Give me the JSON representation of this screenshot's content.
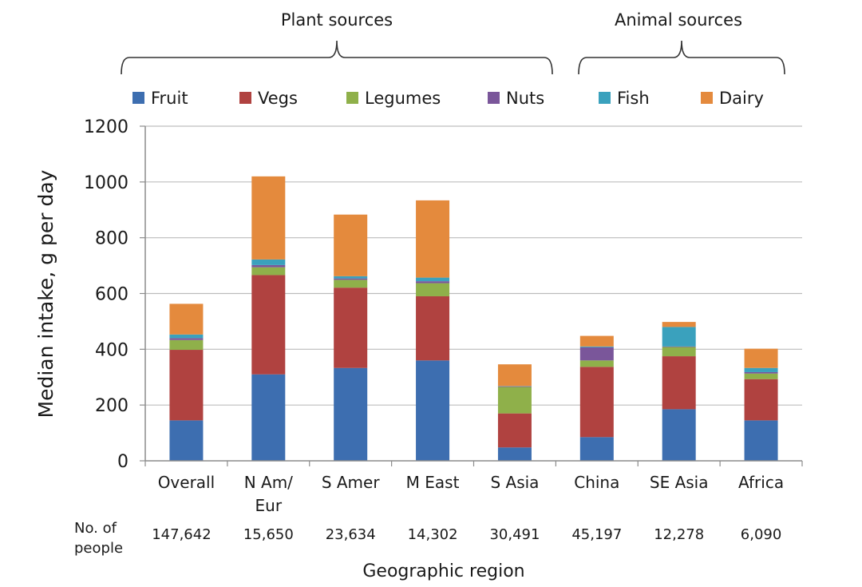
{
  "chart_data": {
    "type": "bar",
    "stacked": true,
    "xlabel": "Geographic region",
    "ylabel": "Median intake, g per day",
    "ylim": [
      0,
      1200
    ],
    "yticks": [
      0,
      200,
      400,
      600,
      800,
      1000,
      1200
    ],
    "grid": true,
    "legend_position": "top",
    "group_labels": [
      {
        "label": "Plant sources",
        "series": [
          "Fruit",
          "Vegs",
          "Legumes",
          "Nuts"
        ]
      },
      {
        "label": "Animal sources",
        "series": [
          "Fish",
          "Dairy"
        ]
      }
    ],
    "categories": [
      [
        "Overall"
      ],
      [
        "N Am/",
        "Eur"
      ],
      [
        "S Amer"
      ],
      [
        "M East"
      ],
      [
        "S Asia"
      ],
      [
        "China"
      ],
      [
        "SE Asia"
      ],
      [
        "Africa"
      ]
    ],
    "people_label": [
      "No. of",
      "people"
    ],
    "people_counts": [
      "147,642",
      "15,650",
      "23,634",
      "14,302",
      "30,491",
      "45,197",
      "12,278",
      "6,090"
    ],
    "series": [
      {
        "name": "Fruit",
        "color": "#3d6eb0",
        "values": [
          145,
          310,
          333,
          360,
          48,
          85,
          185,
          145
        ]
      },
      {
        "name": "Vegs",
        "color": "#b04240",
        "values": [
          253,
          356,
          288,
          230,
          122,
          252,
          190,
          148
        ]
      },
      {
        "name": "Legumes",
        "color": "#8fb04a",
        "values": [
          35,
          28,
          28,
          47,
          95,
          23,
          33,
          20
        ]
      },
      {
        "name": "Nuts",
        "color": "#7a569a",
        "values": [
          7,
          8,
          5,
          7,
          2,
          47,
          2,
          5
        ]
      },
      {
        "name": "Fish",
        "color": "#3aa1bd",
        "values": [
          13,
          20,
          8,
          13,
          1,
          3,
          70,
          15
        ]
      },
      {
        "name": "Dairy",
        "color": "#e48a3d",
        "values": [
          110,
          298,
          221,
          277,
          78,
          38,
          18,
          69
        ]
      }
    ]
  }
}
